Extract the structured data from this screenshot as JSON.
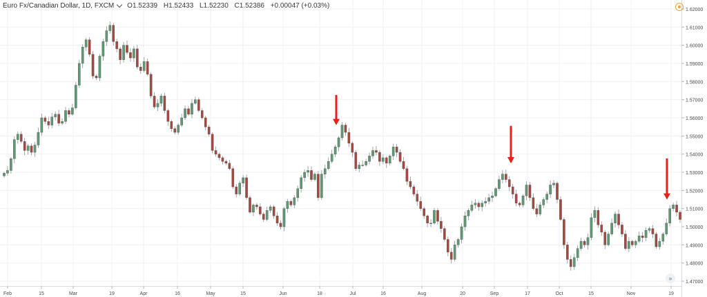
{
  "legend": {
    "symbol": "Euro Fx/Canadian Dollar, 1D, FXCM",
    "open": "O1.52339",
    "high": "H1.52433",
    "low": "L1.52230",
    "close": "C1.52386",
    "change": "+0.00047 (+0.03%)"
  },
  "icons": {
    "settings": "gear-icon",
    "scroll": "go-to-realtime-icon"
  },
  "colors": {
    "up": "#5e9a72",
    "down": "#a54840",
    "arrow": "#e8201a",
    "grid": "#eef0f3",
    "axis_text": "#4a4a4a"
  },
  "chart_data": {
    "type": "candlestick",
    "x_ticks": [
      "Feb",
      "15",
      "Mar",
      "19",
      "Apr",
      "16",
      "May",
      "15",
      "Jun",
      "18",
      "Jul",
      "16",
      "Aug",
      "20",
      "Sep",
      "17",
      "Oct",
      "15",
      "Nov",
      "19"
    ],
    "y_ticks": [
      "1.62000",
      "1.61000",
      "1.60000",
      "1.59000",
      "1.58000",
      "1.57000",
      "1.56000",
      "1.55000",
      "1.54000",
      "1.53000",
      "1.52000",
      "1.51000",
      "1.50000",
      "1.49000",
      "1.48000",
      "1.47000"
    ],
    "ylim": [
      1.4685,
      1.6215
    ],
    "grid": true,
    "annotations": [
      "down-arrow near 1.5595 (late Jun)",
      "down-arrow near 1.5335 (early Sep)",
      "down-arrow near 1.5145 (late Nov)"
    ],
    "closes": [
      1.5295,
      1.531,
      1.5375,
      1.548,
      1.551,
      1.547,
      1.542,
      1.5445,
      1.541,
      1.545,
      1.552,
      1.56,
      1.558,
      1.556,
      1.5605,
      1.562,
      1.557,
      1.558,
      1.564,
      1.562,
      1.5655,
      1.578,
      1.59,
      1.599,
      1.603,
      1.595,
      1.583,
      1.582,
      1.594,
      1.602,
      1.608,
      1.611,
      1.602,
      1.598,
      1.592,
      1.6,
      1.596,
      1.593,
      1.598,
      1.588,
      1.586,
      1.591,
      1.584,
      1.572,
      1.566,
      1.568,
      1.572,
      1.564,
      1.558,
      1.554,
      1.552,
      1.556,
      1.56,
      1.565,
      1.562,
      1.568,
      1.57,
      1.564,
      1.56,
      1.555,
      1.551,
      1.542,
      1.54,
      1.538,
      1.536,
      1.535,
      1.532,
      1.522,
      1.518,
      1.524,
      1.527,
      1.516,
      1.508,
      1.512,
      1.511,
      1.507,
      1.504,
      1.509,
      1.511,
      1.506,
      1.502,
      1.5,
      1.51,
      1.514,
      1.512,
      1.516,
      1.521,
      1.527,
      1.53,
      1.531,
      1.526,
      1.529,
      1.516,
      1.529,
      1.532,
      1.536,
      1.54,
      1.544,
      1.549,
      1.556,
      1.552,
      1.546,
      1.541,
      1.532,
      1.534,
      1.534,
      1.536,
      1.539,
      1.542,
      1.541,
      1.536,
      1.538,
      1.535,
      1.539,
      1.544,
      1.541,
      1.536,
      1.532,
      1.525,
      1.522,
      1.518,
      1.514,
      1.51,
      1.506,
      1.502,
      1.502,
      1.509,
      1.503,
      1.499,
      1.493,
      1.486,
      1.482,
      1.49,
      1.493,
      1.5,
      1.506,
      1.509,
      1.512,
      1.513,
      1.511,
      1.513,
      1.514,
      1.516,
      1.517,
      1.521,
      1.526,
      1.529,
      1.526,
      1.522,
      1.518,
      1.513,
      1.512,
      1.517,
      1.523,
      1.516,
      1.51,
      1.507,
      1.512,
      1.515,
      1.518,
      1.523,
      1.524,
      1.515,
      1.504,
      1.49,
      1.482,
      1.478,
      1.483,
      1.488,
      1.492,
      1.49,
      1.494,
      1.505,
      1.509,
      1.501,
      1.497,
      1.49,
      1.496,
      1.502,
      1.507,
      1.501,
      1.496,
      1.488,
      1.492,
      1.49,
      1.492,
      1.495,
      1.494,
      1.498,
      1.499,
      1.496,
      1.489,
      1.492,
      1.496,
      1.502,
      1.51,
      1.512,
      1.508,
      1.504
    ]
  }
}
